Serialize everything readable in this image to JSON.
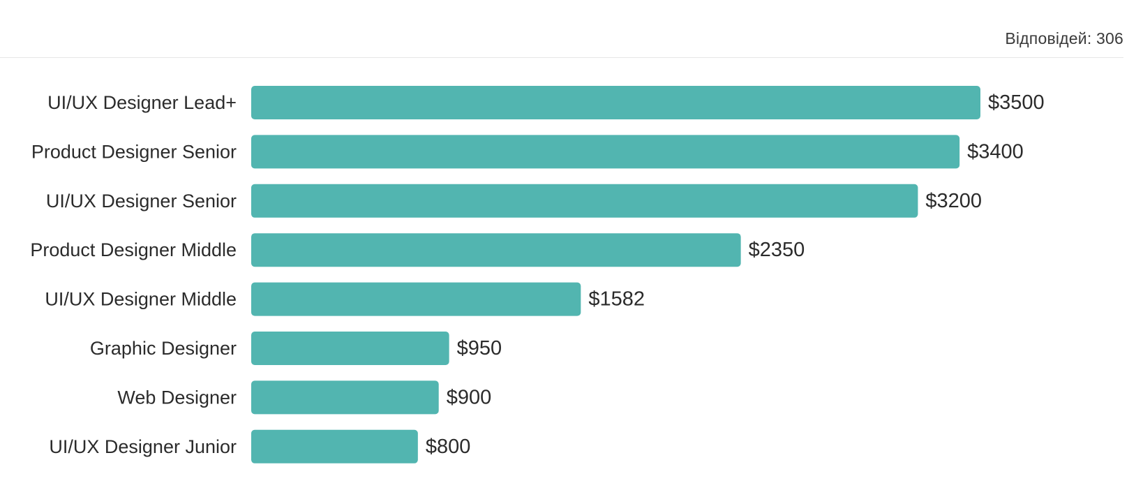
{
  "header": {
    "responses_text": "Відповідей: 306"
  },
  "colors": {
    "bar": "#52b5b0"
  },
  "chart_data": {
    "type": "bar",
    "orientation": "horizontal",
    "categories": [
      "UI/UX Designer Lead+",
      "Product Designer Senior",
      "UI/UX Designer Senior",
      "Product Designer Middle",
      "UI/UX Designer Middle",
      "Graphic Designer",
      "Web Designer",
      "UI/UX Designer Junior"
    ],
    "values": [
      3500,
      3400,
      3200,
      2350,
      1582,
      950,
      900,
      800
    ],
    "value_labels": [
      "$3500",
      "$3400",
      "$3200",
      "$2350",
      "$1582",
      "$950",
      "$900",
      "$800"
    ],
    "xlim": [
      0,
      3500
    ],
    "grid": false,
    "legend": "none"
  }
}
